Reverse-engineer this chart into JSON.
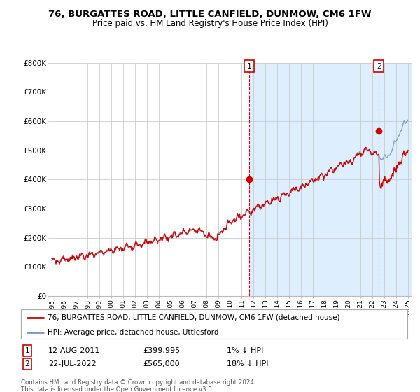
{
  "title": "76, BURGATTES ROAD, LITTLE CANFIELD, DUNMOW, CM6 1FW",
  "subtitle": "Price paid vs. HM Land Registry's House Price Index (HPI)",
  "ylim": [
    0,
    800000
  ],
  "yticks": [
    0,
    100000,
    200000,
    300000,
    400000,
    500000,
    600000,
    700000,
    800000
  ],
  "ytick_labels": [
    "£0",
    "£100K",
    "£200K",
    "£300K",
    "£400K",
    "£500K",
    "£600K",
    "£700K",
    "£800K"
  ],
  "hpi_color": "#7799bb",
  "price_color": "#cc0000",
  "shade_color": "#ddeeff",
  "marker1_date": 2011.62,
  "marker1_price": 399995,
  "marker1_label": "1",
  "marker2_date": 2022.55,
  "marker2_price": 565000,
  "marker2_label": "2",
  "bg_color": "#ffffff",
  "grid_color": "#cccccc",
  "legend_entry1": "76, BURGATTES ROAD, LITTLE CANFIELD, DUNMOW, CM6 1FW (detached house)",
  "legend_entry2": "HPI: Average price, detached house, Uttlesford",
  "table_row1": [
    "1",
    "12-AUG-2011",
    "£399,995",
    "1% ↓ HPI"
  ],
  "table_row2": [
    "2",
    "22-JUL-2022",
    "£565,000",
    "18% ↓ HPI"
  ],
  "footnote": "Contains HM Land Registry data © Crown copyright and database right 2024.\nThis data is licensed under the Open Government Licence v3.0.",
  "title_fontsize": 9.5,
  "subtitle_fontsize": 8.5,
  "xstart": 1995,
  "xend": 2025
}
